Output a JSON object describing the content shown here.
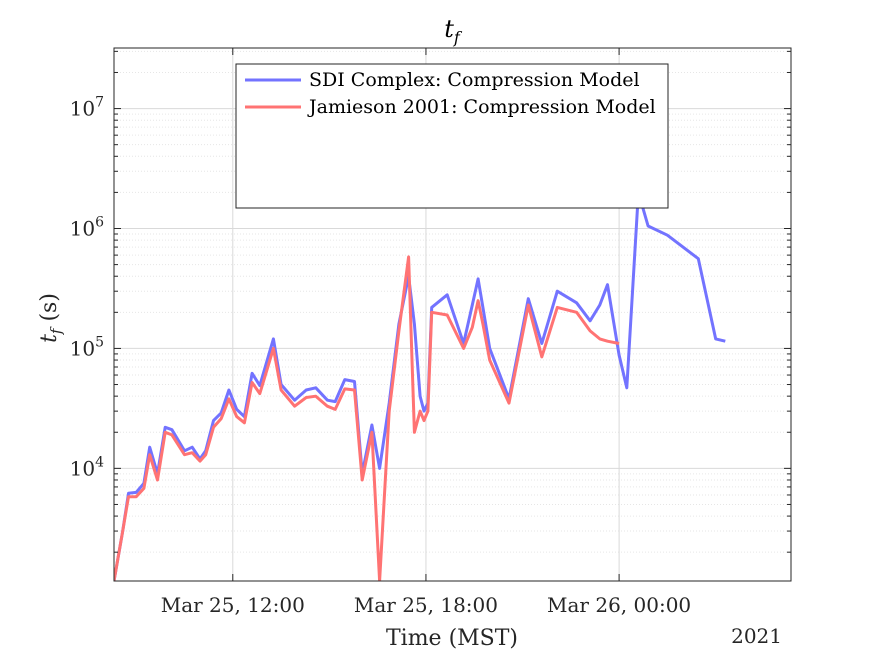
{
  "chart_data": {
    "type": "line",
    "title": "t",
    "title_subscript": "f",
    "xlabel": "Time (MST)",
    "ylabel_main": "t",
    "ylabel_sub": "f",
    "ylabel_unit": " (s)",
    "year_label": "2021",
    "x_unit": "hours after Mar 25, 00:00 MST",
    "xlim": [
      6.85,
      41.9
    ],
    "ylim": [
      1150,
      32000000
    ],
    "y_scale": "log",
    "x_ticks": [
      {
        "x": 13,
        "label": "Mar 25, 12:00"
      },
      {
        "x": 23,
        "label": "Mar 25, 18:00"
      },
      {
        "x": 33,
        "label": "Mar 26, 00:00"
      }
    ],
    "y_ticks": [
      {
        "value": 10000,
        "base": "10",
        "exp": "4"
      },
      {
        "value": 100000,
        "base": "10",
        "exp": "5"
      },
      {
        "value": 1000000,
        "base": "10",
        "exp": "6"
      },
      {
        "value": 10000000,
        "base": "10",
        "exp": "7"
      }
    ],
    "grid": true,
    "legend_position": "top-center",
    "series": [
      {
        "name": "SDI Complex: Compression Model",
        "color": "#7373ff",
        "dash": "solid",
        "x": [
          6.85,
          7.3,
          7.6,
          8.0,
          8.4,
          8.7,
          9.1,
          9.5,
          9.85,
          10.5,
          10.9,
          11.3,
          11.6,
          12.0,
          12.4,
          12.8,
          13.2,
          13.6,
          14.0,
          14.4,
          15.1,
          15.5,
          16.2,
          16.8,
          17.3,
          17.9,
          18.3,
          18.8,
          19.3,
          19.7,
          20.2,
          20.6,
          21.1,
          21.6,
          22.1,
          22.4,
          22.7,
          22.9,
          23.1,
          23.3,
          24.1,
          24.95,
          25.4,
          25.7,
          25.95,
          26.3,
          27.3,
          28.3,
          29.0,
          29.8,
          30.8,
          31.5,
          32.0,
          32.4,
          33.0,
          33.4,
          34.0,
          34.5,
          35.5,
          37.1,
          38.0,
          38.5,
          39.0,
          39.6,
          40.2,
          40.75,
          41.3,
          41.9
        ],
        "values": [
          1150,
          3000,
          6200,
          6300,
          7500,
          15000,
          9000,
          22000,
          21000,
          14000,
          15000,
          12000,
          14000,
          25000,
          29000,
          45000,
          31000,
          27000,
          62000,
          49000,
          120000,
          50000,
          37000,
          45000,
          47000,
          37000,
          36000,
          55000,
          53000,
          9000,
          23000,
          10000,
          35000,
          160000,
          400000,
          160000,
          40000,
          30000,
          35000,
          220000,
          280000,
          110000,
          230000,
          380000,
          220000,
          100000,
          38000,
          260000,
          110000,
          300000,
          240000,
          170000,
          230000,
          340000,
          88000,
          47000,
          2000000,
          1050000,
          880000,
          560000,
          120000,
          115000,
          0,
          0,
          0,
          0,
          0,
          0
        ]
      },
      {
        "name": "Jamieson 2001: Compression Model",
        "color": "#ff7373",
        "dash": "solid",
        "x": [
          6.85,
          7.3,
          7.6,
          8.0,
          8.4,
          8.7,
          9.1,
          9.5,
          9.85,
          10.5,
          10.9,
          11.3,
          11.6,
          12.0,
          12.4,
          12.8,
          13.2,
          13.6,
          14.0,
          14.4,
          15.1,
          15.5,
          16.2,
          16.8,
          17.3,
          17.9,
          18.3,
          18.8,
          19.3,
          19.7,
          20.2,
          20.6,
          21.1,
          21.6,
          22.1,
          22.4,
          22.7,
          22.9,
          23.1,
          23.3,
          24.1,
          24.95,
          25.4,
          25.7,
          25.95,
          26.3,
          27.3,
          28.3,
          29.0,
          29.8,
          30.8,
          31.5,
          32.0,
          32.4,
          33.0,
          33.4,
          34.0,
          34.5,
          35.5,
          37.1,
          38.0,
          38.5,
          39.0,
          39.6,
          40.2,
          40.75,
          41.3,
          41.9
        ],
        "values": [
          1150,
          3000,
          5800,
          5800,
          6800,
          13000,
          8000,
          20000,
          19000,
          13000,
          13500,
          11500,
          13000,
          22000,
          26000,
          38000,
          27000,
          24000,
          52000,
          42000,
          100000,
          45000,
          33000,
          39000,
          40000,
          33000,
          31000,
          46000,
          45000,
          8000,
          20000,
          1150,
          30000,
          140000,
          580000,
          20000,
          30000,
          25000,
          30000,
          200000,
          190000,
          100000,
          150000,
          250000,
          160000,
          80000,
          35000,
          230000,
          85000,
          220000,
          200000,
          140000,
          120000,
          115000,
          110000,
          0,
          0,
          0,
          0,
          0,
          0,
          0,
          0,
          0,
          0,
          0,
          0,
          0
        ]
      }
    ]
  }
}
